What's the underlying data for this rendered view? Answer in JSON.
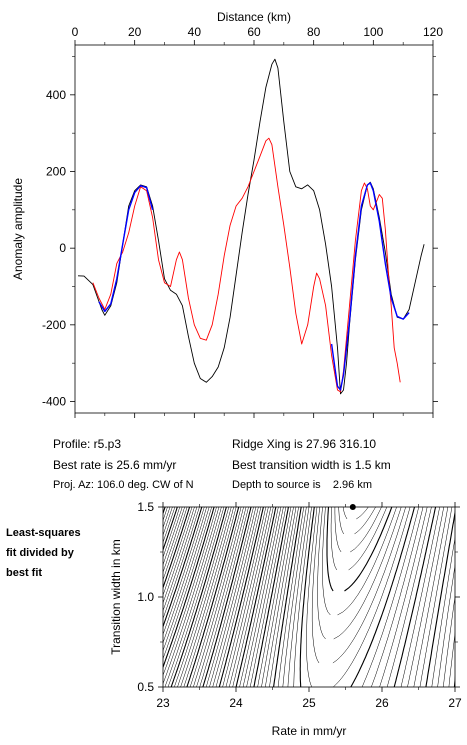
{
  "info": {
    "profile": "Profile: r5.p3",
    "best_rate": "Best rate is 25.6 mm/yr",
    "proj_az": "Proj. Az: 106.0 deg. CW of N",
    "ridge_xing": "Ridge Xing is 27.96 316.10",
    "best_width": "Best transition width is 1.5 km",
    "depth": "Depth to source is    2.96 km"
  },
  "note": {
    "line1": "Least-squares",
    "line2": "fit divided by",
    "line3": "best fit"
  },
  "chart_data": [
    {
      "type": "line",
      "xlabel": "Distance (km)",
      "ylabel": "Anomaly amplitude",
      "xlim": [
        0,
        120
      ],
      "ylim": [
        -430,
        530
      ],
      "x_ticks": [
        0,
        20,
        40,
        60,
        80,
        100,
        120
      ],
      "y_ticks": [
        -400,
        -200,
        0,
        200,
        400
      ],
      "grid": false,
      "series": [
        {
          "color": "#000000",
          "points": [
            [
              1,
              -72
            ],
            [
              3,
              -73
            ],
            [
              6,
              -95
            ],
            [
              9,
              -160
            ],
            [
              10,
              -175
            ],
            [
              12,
              -150
            ],
            [
              14,
              -90
            ],
            [
              16,
              10
            ],
            [
              18,
              110
            ],
            [
              20,
              150
            ],
            [
              22,
              165
            ],
            [
              24,
              160
            ],
            [
              26,
              110
            ],
            [
              28,
              20
            ],
            [
              30,
              -80
            ],
            [
              32,
              -110
            ],
            [
              34,
              -120
            ],
            [
              36,
              -150
            ],
            [
              38,
              -230
            ],
            [
              40,
              -300
            ],
            [
              42,
              -340
            ],
            [
              44,
              -350
            ],
            [
              46,
              -335
            ],
            [
              48,
              -310
            ],
            [
              50,
              -260
            ],
            [
              52,
              -180
            ],
            [
              54,
              -70
            ],
            [
              56,
              40
            ],
            [
              58,
              140
            ],
            [
              60,
              230
            ],
            [
              62,
              330
            ],
            [
              64,
              420
            ],
            [
              66,
              480
            ],
            [
              67,
              493
            ],
            [
              68,
              470
            ],
            [
              70,
              330
            ],
            [
              72,
              200
            ],
            [
              74,
              160
            ],
            [
              76,
              155
            ],
            [
              78,
              165
            ],
            [
              80,
              150
            ],
            [
              82,
              100
            ],
            [
              84,
              10
            ],
            [
              86,
              -100
            ],
            [
              88,
              -260
            ],
            [
              89,
              -380
            ],
            [
              90,
              -370
            ],
            [
              91,
              -300
            ],
            [
              92,
              -200
            ],
            [
              94,
              -30
            ],
            [
              96,
              100
            ],
            [
              98,
              165
            ],
            [
              99,
              172
            ],
            [
              100,
              155
            ],
            [
              102,
              80
            ],
            [
              104,
              -10
            ],
            [
              106,
              -120
            ],
            [
              108,
              -180
            ],
            [
              110,
              -185
            ],
            [
              112,
              -160
            ],
            [
              114,
              -90
            ],
            [
              116,
              -20
            ],
            [
              117,
              10
            ]
          ]
        },
        {
          "color": "#ff0000",
          "points": [
            [
              6,
              -90
            ],
            [
              8,
              -130
            ],
            [
              10,
              -160
            ],
            [
              12,
              -120
            ],
            [
              14,
              -40
            ],
            [
              16,
              -10
            ],
            [
              18,
              40
            ],
            [
              20,
              110
            ],
            [
              22,
              160
            ],
            [
              24,
              150
            ],
            [
              26,
              80
            ],
            [
              28,
              -30
            ],
            [
              30,
              -90
            ],
            [
              32,
              -100
            ],
            [
              34,
              -30
            ],
            [
              35,
              -10
            ],
            [
              36,
              -30
            ],
            [
              38,
              -130
            ],
            [
              40,
              -200
            ],
            [
              42,
              -235
            ],
            [
              44,
              -240
            ],
            [
              46,
              -200
            ],
            [
              48,
              -120
            ],
            [
              50,
              -20
            ],
            [
              52,
              60
            ],
            [
              54,
              110
            ],
            [
              56,
              130
            ],
            [
              58,
              160
            ],
            [
              60,
              200
            ],
            [
              62,
              240
            ],
            [
              64,
              280
            ],
            [
              65,
              287
            ],
            [
              66,
              270
            ],
            [
              68,
              160
            ],
            [
              70,
              60
            ],
            [
              72,
              -50
            ],
            [
              74,
              -170
            ],
            [
              76,
              -250
            ],
            [
              78,
              -200
            ],
            [
              80,
              -100
            ],
            [
              81,
              -65
            ],
            [
              82,
              -80
            ],
            [
              84,
              -150
            ],
            [
              86,
              -280
            ],
            [
              88,
              -370
            ],
            [
              89,
              -375
            ],
            [
              90,
              -320
            ],
            [
              92,
              -150
            ],
            [
              94,
              20
            ],
            [
              96,
              150
            ],
            [
              97,
              170
            ],
            [
              98,
              155
            ],
            [
              99,
              110
            ],
            [
              100,
              100
            ],
            [
              101,
              120
            ],
            [
              102,
              140
            ],
            [
              103,
              130
            ],
            [
              104,
              50
            ],
            [
              105,
              -60
            ],
            [
              106,
              -150
            ],
            [
              107,
              -260
            ],
            [
              108,
              -300
            ],
            [
              109,
              -350
            ]
          ]
        },
        {
          "color": "#0000ff",
          "points": [
            [
              8,
              -140
            ],
            [
              10,
              -165
            ],
            [
              12,
              -145
            ],
            [
              14,
              -80
            ],
            [
              16,
              10
            ],
            [
              18,
              100
            ],
            [
              20,
              145
            ],
            [
              22,
              163
            ],
            [
              24,
              158
            ],
            [
              26,
              100
            ]
          ]
        },
        {
          "color": "#0000ff",
          "points": [
            [
              86,
              -250
            ],
            [
              88,
              -360
            ],
            [
              89,
              -370
            ],
            [
              90,
              -330
            ],
            [
              92,
              -190
            ],
            [
              94,
              -20
            ],
            [
              96,
              110
            ],
            [
              98,
              165
            ],
            [
              99,
              170
            ],
            [
              100,
              150
            ],
            [
              102,
              70
            ],
            [
              104,
              -40
            ],
            [
              106,
              -130
            ],
            [
              108,
              -178
            ],
            [
              110,
              -185
            ],
            [
              112,
              -168
            ]
          ]
        }
      ]
    },
    {
      "type": "contour",
      "xlabel": "Rate in mm/yr",
      "ylabel": "Transition width in km",
      "xlim": [
        23,
        27
      ],
      "ylim": [
        0.5,
        1.5
      ],
      "x_ticks": [
        23,
        24,
        25,
        26,
        27
      ],
      "y_ticks": [
        0.5,
        1.0,
        1.5
      ],
      "best_fit": {
        "x": 25.6,
        "y": 1.5
      }
    }
  ]
}
